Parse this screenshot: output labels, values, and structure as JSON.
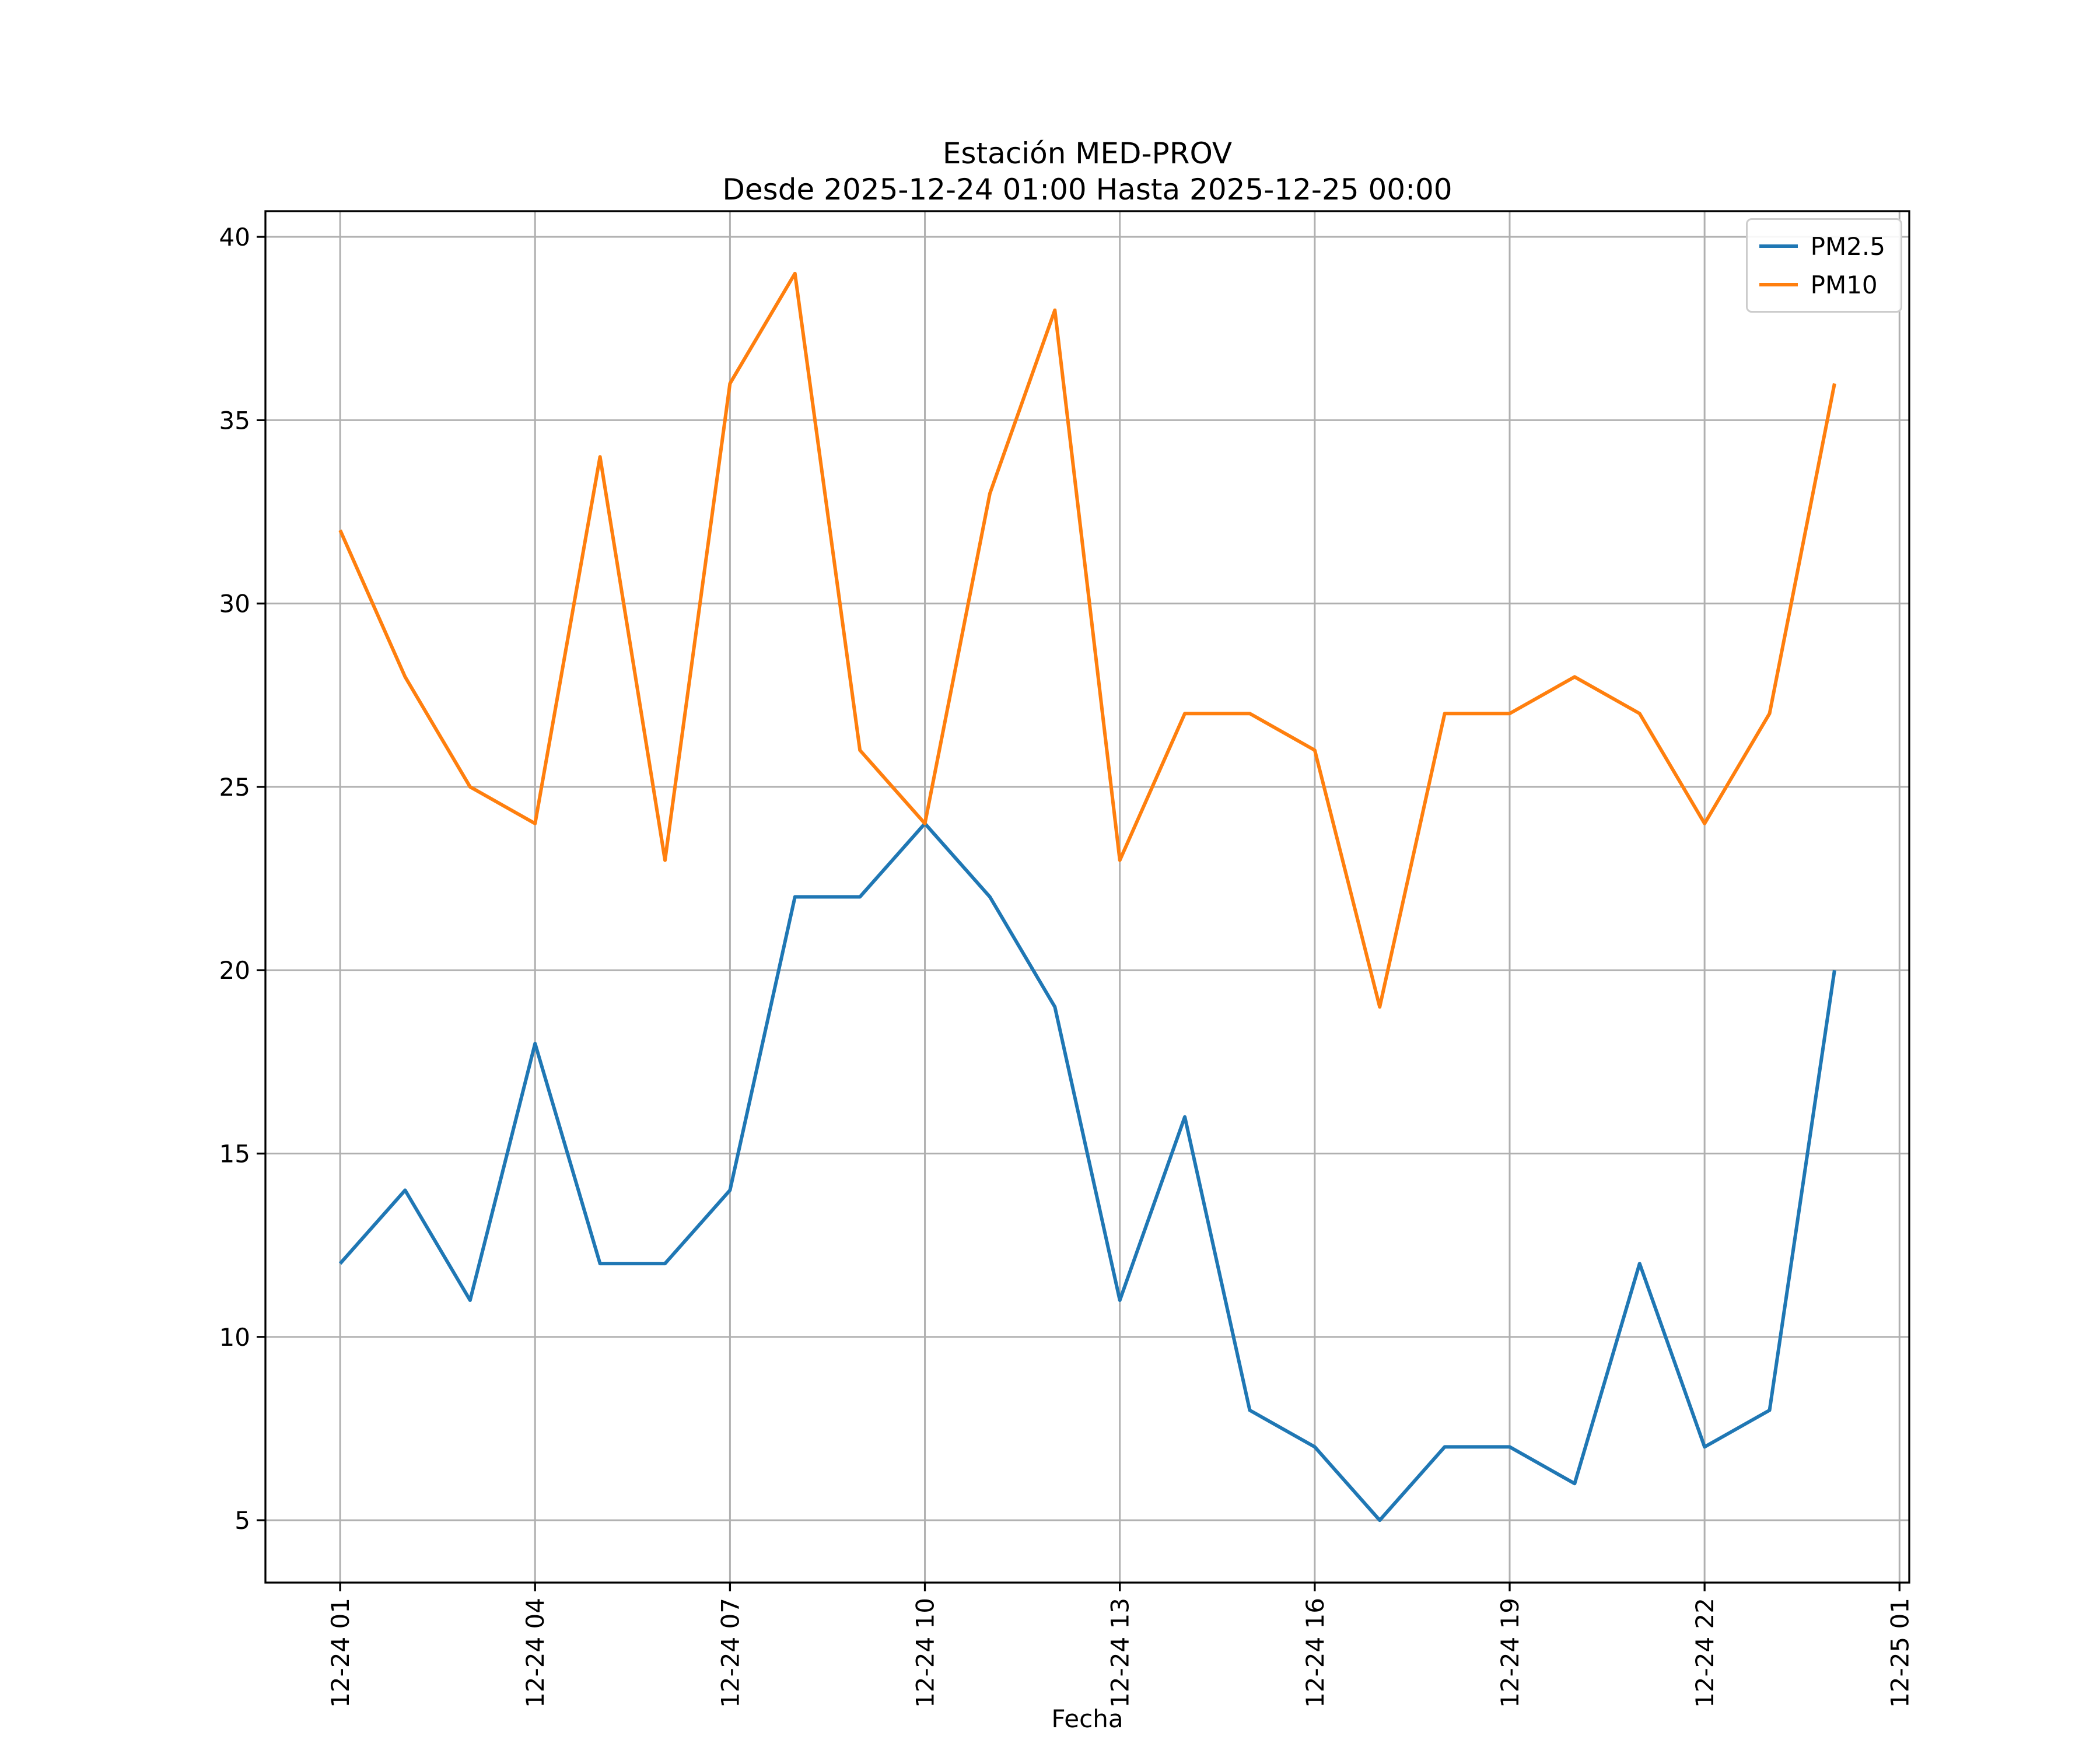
{
  "chart_data": {
    "type": "line",
    "title": "Estación MED-PROV",
    "subtitle": "Desde 2025-12-24 01:00 Hasta 2025-12-25 00:00",
    "xlabel": "Fecha",
    "ylabel": "",
    "grid": true,
    "legend_position": "upper right",
    "grid_color": "#b0b0b0",
    "xlim_hours": [
      -0.15,
      25.15
    ],
    "ylim": [
      3.3,
      40.7
    ],
    "y_ticks": [
      5,
      10,
      15,
      20,
      25,
      30,
      35,
      40
    ],
    "x_tick_hours": [
      1,
      4,
      7,
      10,
      13,
      16,
      19,
      22,
      25
    ],
    "x_tick_labels": [
      "12-24 01",
      "12-24 04",
      "12-24 07",
      "12-24 10",
      "12-24 13",
      "12-24 16",
      "12-24 19",
      "12-24 22",
      "12-25 01"
    ],
    "x_hours": [
      1,
      2,
      3,
      4,
      5,
      6,
      7,
      8,
      9,
      10,
      11,
      12,
      13,
      14,
      15,
      16,
      17,
      18,
      19,
      20,
      21,
      22,
      23,
      24
    ],
    "series": [
      {
        "name": "PM2.5",
        "color": "#1f77b4",
        "values": [
          12,
          14,
          11,
          18,
          12,
          12,
          14,
          22,
          22,
          24,
          22,
          19,
          11,
          16,
          8,
          7,
          5,
          7,
          7,
          6,
          12,
          7,
          8,
          20
        ]
      },
      {
        "name": "PM10",
        "color": "#ff7f0e",
        "values": [
          32,
          28,
          25,
          24,
          34,
          23,
          36,
          39,
          26,
          24,
          33,
          38,
          23,
          27,
          27,
          26,
          19,
          27,
          27,
          28,
          27,
          24,
          27,
          36
        ]
      }
    ]
  }
}
